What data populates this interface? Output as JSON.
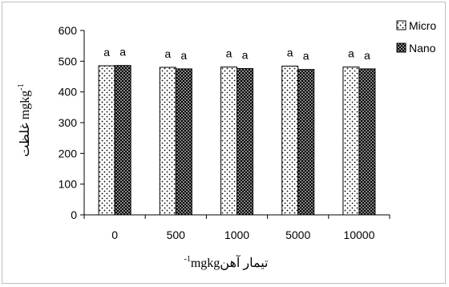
{
  "chart_data": {
    "type": "bar",
    "categories": [
      "0",
      "500",
      "1000",
      "5000",
      "10000"
    ],
    "series": [
      {
        "name": "Micro",
        "pattern": "dots",
        "values": [
          485,
          480,
          481,
          484,
          481
        ]
      },
      {
        "name": "Nano",
        "pattern": "crosshatch",
        "values": [
          486,
          475,
          476,
          473,
          475
        ]
      }
    ],
    "data_labels": [
      [
        "a",
        "a"
      ],
      [
        "a",
        "a"
      ],
      [
        "a",
        "a"
      ],
      [
        "a",
        "a"
      ],
      [
        "a",
        "a"
      ]
    ],
    "yticks": [
      "0",
      "100",
      "200",
      "300",
      "400",
      "500",
      "600"
    ],
    "ylim": [
      0,
      600
    ],
    "ylabel": "غلظت  mgkg",
    "ylabel_sup": "-1",
    "xlabel": "mgkgتیمار آهن",
    "xlabel_sup": "-1",
    "legend_position": "right",
    "grid": false,
    "colors": {
      "bar_fill": "#ffffff",
      "bar_edge": "#000000",
      "pattern": "#000000"
    }
  }
}
